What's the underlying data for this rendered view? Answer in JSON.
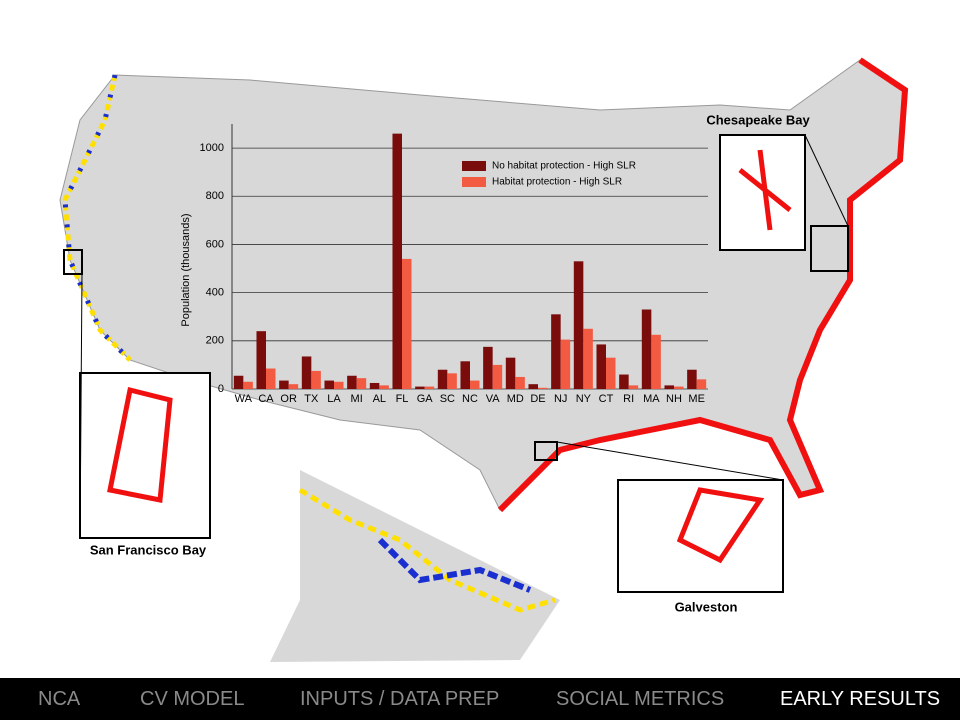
{
  "chart_data": {
    "type": "bar",
    "y_label": "Population (thousands)",
    "categories": [
      "WA",
      "CA",
      "OR",
      "TX",
      "LA",
      "MI",
      "AL",
      "FL",
      "GA",
      "SC",
      "NC",
      "VA",
      "MD",
      "DE",
      "NJ",
      "NY",
      "CT",
      "RI",
      "MA",
      "NH",
      "ME"
    ],
    "series": [
      {
        "name": "No habitat protection - High SLR",
        "color": "#7a0c0c",
        "values": [
          55,
          240,
          35,
          135,
          35,
          55,
          25,
          1060,
          10,
          80,
          115,
          175,
          130,
          20,
          310,
          530,
          185,
          60,
          330,
          15,
          80
        ]
      },
      {
        "name": "Habitat protection - High SLR",
        "color": "#f25a42",
        "values": [
          30,
          85,
          20,
          75,
          30,
          45,
          15,
          540,
          10,
          65,
          35,
          100,
          50,
          5,
          205,
          250,
          130,
          15,
          225,
          10,
          40
        ]
      }
    ],
    "ylim": [
      0,
      1100
    ],
    "yticks": [
      0,
      200,
      400,
      600,
      800,
      1000
    ],
    "grid": true,
    "legend": "top-right"
  },
  "insets": [
    "Chesapeake Bay",
    "San  Francisco Bay",
    "Galveston"
  ],
  "nav": [
    "NCA",
    "CV MODEL",
    "INPUTS  / DATA PREP",
    "SOCIAL  METRICS",
    "EARLY RESULTS"
  ]
}
